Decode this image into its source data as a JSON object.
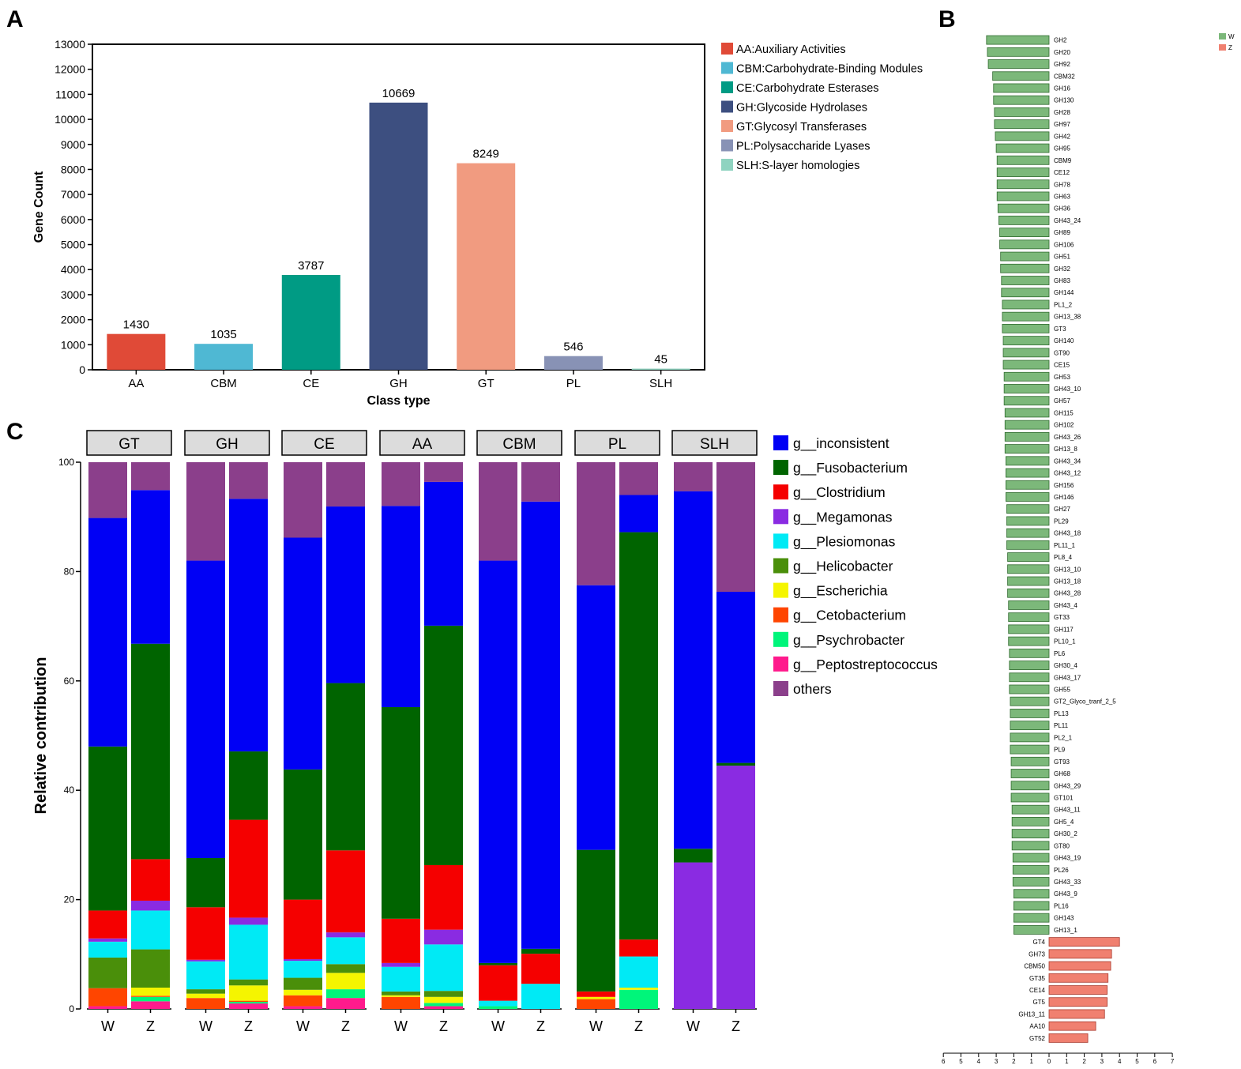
{
  "panel_labels": {
    "a": "A",
    "b": "B",
    "c": "C"
  },
  "chart_data": [
    {
      "id": "A",
      "type": "bar",
      "title": "",
      "xlabel": "Class type",
      "ylabel": "Gene Count",
      "ylim": [
        0,
        13000
      ],
      "yticks": [
        0,
        1000,
        2000,
        3000,
        4000,
        5000,
        6000,
        7000,
        8000,
        9000,
        10000,
        11000,
        12000,
        13000
      ],
      "categories": [
        "AA",
        "CBM",
        "CE",
        "GH",
        "GT",
        "PL",
        "SLH"
      ],
      "values": [
        1430,
        1035,
        3787,
        10669,
        8249,
        546,
        45
      ],
      "colors": [
        "#e04a37",
        "#4fb8d3",
        "#009b84",
        "#3d4f80",
        "#f19b80",
        "#8892b5",
        "#8fd3c0"
      ],
      "legend_position": "right",
      "legend": [
        "AA:Auxiliary Activities",
        "CBM:Carbohydrate-Binding Modules",
        "CE:Carbohydrate Esterases",
        "GH:Glycoside Hydrolases",
        "GT:Glycosyl Transferases",
        "PL:Polysaccharide Lyases",
        "SLH:S-layer homologies"
      ]
    },
    {
      "id": "B",
      "type": "bar",
      "orientation": "horizontal",
      "legend_position": "top-right",
      "legend": [
        {
          "name": "W",
          "color": "#7cb87a"
        },
        {
          "name": "Z",
          "color": "#f08070"
        }
      ],
      "xlim": [
        -6,
        7
      ],
      "xticks": [
        "6",
        "5",
        "4",
        "3",
        "2",
        "1",
        "0",
        "1",
        "2",
        "3",
        "4",
        "5",
        "6",
        "7"
      ],
      "categories": [
        "GH2",
        "GH20",
        "GH92",
        "CBM32",
        "GH16",
        "GH130",
        "GH28",
        "GH97",
        "GH42",
        "GH95",
        "CBM9",
        "CE12",
        "GH78",
        "GH63",
        "GH36",
        "GH43_24",
        "GH89",
        "GH106",
        "GH51",
        "GH32",
        "GH83",
        "GH144",
        "PL1_2",
        "GH13_38",
        "GT3",
        "GH140",
        "GT90",
        "CE15",
        "GH53",
        "GH43_10",
        "GH57",
        "GH115",
        "GH102",
        "GH43_26",
        "GH13_8",
        "GH43_34",
        "GH43_12",
        "GH156",
        "GH146",
        "GH27",
        "PL29",
        "GH43_18",
        "PL11_1",
        "PL8_4",
        "GH13_10",
        "GH13_18",
        "GH43_28",
        "GH43_4",
        "GT33",
        "GH117",
        "PL10_1",
        "PL6",
        "GH30_4",
        "GH43_17",
        "GH55",
        "GT2_Glyco_tranf_2_5",
        "PL13",
        "PL11",
        "PL2_1",
        "PL9",
        "GT93",
        "GH68",
        "GH43_29",
        "GT101",
        "GH43_11",
        "GH5_4",
        "GH30_2",
        "GT80",
        "GH43_19",
        "PL26",
        "GH43_33",
        "GH43_9",
        "PL16",
        "GH143",
        "GH13_1",
        "GT4",
        "GH73",
        "CBM50",
        "GT35",
        "CE14",
        "GT5",
        "GH13_11",
        "AA10",
        "GT52"
      ],
      "values": [
        -3.55,
        -3.5,
        -3.45,
        -3.2,
        -3.15,
        -3.15,
        -3.1,
        -3.1,
        -3.05,
        -3.0,
        -2.95,
        -2.95,
        -2.95,
        -2.95,
        -2.9,
        -2.85,
        -2.8,
        -2.8,
        -2.75,
        -2.75,
        -2.7,
        -2.7,
        -2.65,
        -2.65,
        -2.65,
        -2.6,
        -2.6,
        -2.6,
        -2.55,
        -2.55,
        -2.55,
        -2.5,
        -2.5,
        -2.5,
        -2.5,
        -2.45,
        -2.45,
        -2.45,
        -2.45,
        -2.4,
        -2.4,
        -2.4,
        -2.4,
        -2.35,
        -2.35,
        -2.35,
        -2.35,
        -2.3,
        -2.3,
        -2.3,
        -2.3,
        -2.25,
        -2.25,
        -2.25,
        -2.25,
        -2.2,
        -2.2,
        -2.2,
        -2.2,
        -2.2,
        -2.15,
        -2.15,
        -2.15,
        -2.15,
        -2.1,
        -2.1,
        -2.1,
        -2.1,
        -2.05,
        -2.05,
        -2.05,
        -2.0,
        -2.0,
        -2.0,
        -2.0,
        4.0,
        3.55,
        3.5,
        3.35,
        3.3,
        3.3,
        3.15,
        2.65,
        2.2
      ]
    },
    {
      "id": "C",
      "type": "bar",
      "stacked": true,
      "ylabel": "Relative contribution",
      "ylim": [
        0,
        100
      ],
      "yticks": [
        0,
        20,
        40,
        60,
        80,
        100
      ],
      "legend_position": "right",
      "genera": [
        "g__inconsistent",
        "g__Fusobacterium",
        "g__Clostridium",
        "g__Megamonas",
        "g__Plesiomonas",
        "g__Helicobacter",
        "g__Escherichia",
        "g__Cetobacterium",
        "g__Psychrobacter",
        "g__Peptostreptococcus",
        "others"
      ],
      "genus_colors": [
        "#0000f5",
        "#006400",
        "#f50000",
        "#8a2be2",
        "#00eaf5",
        "#4a8f0a",
        "#f5f500",
        "#ff4500",
        "#00f57a",
        "#ff1a8c",
        "#8b3f8b"
      ],
      "stack_order": [
        "g__Peptostreptococcus",
        "g__Psychrobacter",
        "g__Cetobacterium",
        "g__Escherichia",
        "g__Helicobacter",
        "g__Plesiomonas",
        "g__Megamonas",
        "g__Clostridium",
        "g__Fusobacterium",
        "g__inconsistent",
        "others"
      ],
      "facets": [
        {
          "name": "GT",
          "bars": [
            {
              "label": "W",
              "values": {
                "g__Peptostreptococcus": 0.5,
                "g__Psychrobacter": 0,
                "g__Cetobacterium": 3.3,
                "g__Escherichia": 0,
                "g__Helicobacter": 5.6,
                "g__Plesiomonas": 2.9,
                "g__Megamonas": 0.6,
                "g__Clostridium": 5.1,
                "g__Fusobacterium": 30,
                "g__inconsistent": 41.8,
                "others": 10.2
              }
            },
            {
              "label": "Z",
              "values": {
                "g__Peptostreptococcus": 1.4,
                "g__Psychrobacter": 0.8,
                "g__Cetobacterium": 0.2,
                "g__Escherichia": 1.5,
                "g__Helicobacter": 7,
                "g__Plesiomonas": 7.1,
                "g__Megamonas": 1.8,
                "g__Clostridium": 7.6,
                "g__Fusobacterium": 39.4,
                "g__inconsistent": 28.1,
                "others": 5.1
              }
            }
          ]
        },
        {
          "name": "GH",
          "bars": [
            {
              "label": "W",
              "values": {
                "g__Peptostreptococcus": 0,
                "g__Psychrobacter": 0,
                "g__Cetobacterium": 2,
                "g__Escherichia": 0.8,
                "g__Helicobacter": 0.8,
                "g__Plesiomonas": 5.1,
                "g__Megamonas": 0.3,
                "g__Clostridium": 9.6,
                "g__Fusobacterium": 9,
                "g__inconsistent": 54.4,
                "others": 18
              }
            },
            {
              "label": "Z",
              "values": {
                "g__Peptostreptococcus": 1,
                "g__Psychrobacter": 0.3,
                "g__Cetobacterium": 0.2,
                "g__Escherichia": 2.8,
                "g__Helicobacter": 1.1,
                "g__Plesiomonas": 10,
                "g__Megamonas": 1.3,
                "g__Clostridium": 17.9,
                "g__Fusobacterium": 12.5,
                "g__inconsistent": 46.2,
                "others": 6.7
              }
            }
          ]
        },
        {
          "name": "CE",
          "bars": [
            {
              "label": "W",
              "values": {
                "g__Peptostreptococcus": 0.5,
                "g__Psychrobacter": 0,
                "g__Cetobacterium": 2,
                "g__Escherichia": 1,
                "g__Helicobacter": 2.2,
                "g__Plesiomonas": 3.1,
                "g__Megamonas": 0.3,
                "g__Clostridium": 10.9,
                "g__Fusobacterium": 23.8,
                "g__inconsistent": 42.4,
                "others": 13.8
              }
            },
            {
              "label": "Z",
              "values": {
                "g__Peptostreptococcus": 2,
                "g__Psychrobacter": 1.6,
                "g__Cetobacterium": 0,
                "g__Escherichia": 3,
                "g__Helicobacter": 1.6,
                "g__Plesiomonas": 4.9,
                "g__Megamonas": 0.9,
                "g__Clostridium": 15,
                "g__Fusobacterium": 30.6,
                "g__inconsistent": 32.3,
                "others": 8.1
              }
            }
          ]
        },
        {
          "name": "AA",
          "bars": [
            {
              "label": "W",
              "values": {
                "g__Peptostreptococcus": 0,
                "g__Psychrobacter": 0,
                "g__Cetobacterium": 2.2,
                "g__Escherichia": 0.3,
                "g__Helicobacter": 0.7,
                "g__Plesiomonas": 4.5,
                "g__Megamonas": 0.7,
                "g__Clostridium": 8.1,
                "g__Fusobacterium": 38.7,
                "g__inconsistent": 36.8,
                "others": 8
              }
            },
            {
              "label": "Z",
              "values": {
                "g__Peptostreptococcus": 0.5,
                "g__Psychrobacter": 0.6,
                "g__Cetobacterium": 0,
                "g__Escherichia": 1.1,
                "g__Helicobacter": 1.1,
                "g__Plesiomonas": 8.5,
                "g__Megamonas": 2.7,
                "g__Clostridium": 11.8,
                "g__Fusobacterium": 43.8,
                "g__inconsistent": 26.3,
                "others": 3.6
              }
            }
          ]
        },
        {
          "name": "CBM",
          "bars": [
            {
              "label": "W",
              "values": {
                "g__Peptostreptococcus": 0,
                "g__Psychrobacter": 0.5,
                "g__Cetobacterium": 0,
                "g__Escherichia": 0,
                "g__Helicobacter": 0,
                "g__Plesiomonas": 1,
                "g__Megamonas": 0,
                "g__Clostridium": 6.5,
                "g__Fusobacterium": 0.4,
                "g__inconsistent": 73.6,
                "others": 18
              }
            },
            {
              "label": "Z",
              "values": {
                "g__Peptostreptococcus": 0,
                "g__Psychrobacter": 0,
                "g__Cetobacterium": 0,
                "g__Escherichia": 0,
                "g__Helicobacter": 0,
                "g__Plesiomonas": 4.6,
                "g__Megamonas": 0,
                "g__Clostridium": 5.5,
                "g__Fusobacterium": 0.9,
                "g__inconsistent": 81.8,
                "others": 7.2
              }
            }
          ]
        },
        {
          "name": "PL",
          "bars": [
            {
              "label": "W",
              "values": {
                "g__Peptostreptococcus": 0,
                "g__Psychrobacter": 0,
                "g__Cetobacterium": 1.8,
                "g__Escherichia": 0.4,
                "g__Helicobacter": 0,
                "g__Plesiomonas": 0,
                "g__Megamonas": 0,
                "g__Clostridium": 1,
                "g__Fusobacterium": 25.9,
                "g__inconsistent": 48.4,
                "others": 22.5
              }
            },
            {
              "label": "Z",
              "values": {
                "g__Peptostreptococcus": 0,
                "g__Psychrobacter": 3.5,
                "g__Cetobacterium": 0,
                "g__Escherichia": 0.4,
                "g__Helicobacter": 0,
                "g__Plesiomonas": 5.7,
                "g__Megamonas": 0,
                "g__Clostridium": 3.1,
                "g__Fusobacterium": 74.5,
                "g__inconsistent": 6.8,
                "others": 6
              }
            }
          ]
        },
        {
          "name": "SLH",
          "bars": [
            {
              "label": "W",
              "values": {
                "g__Peptostreptococcus": 0,
                "g__Psychrobacter": 0,
                "g__Cetobacterium": 0,
                "g__Escherichia": 0,
                "g__Helicobacter": 0,
                "g__Plesiomonas": 0,
                "g__Megamonas": 26.8,
                "g__Clostridium": 0,
                "g__Fusobacterium": 2.5,
                "g__inconsistent": 65.4,
                "others": 5.3
              }
            },
            {
              "label": "Z",
              "values": {
                "g__Peptostreptococcus": 0,
                "g__Psychrobacter": 0,
                "g__Cetobacterium": 0,
                "g__Escherichia": 0,
                "g__Helicobacter": 0,
                "g__Plesiomonas": 0,
                "g__Megamonas": 44.5,
                "g__Clostridium": 0,
                "g__Fusobacterium": 0.5,
                "g__inconsistent": 31.3,
                "others": 23.7
              }
            }
          ]
        }
      ]
    }
  ]
}
